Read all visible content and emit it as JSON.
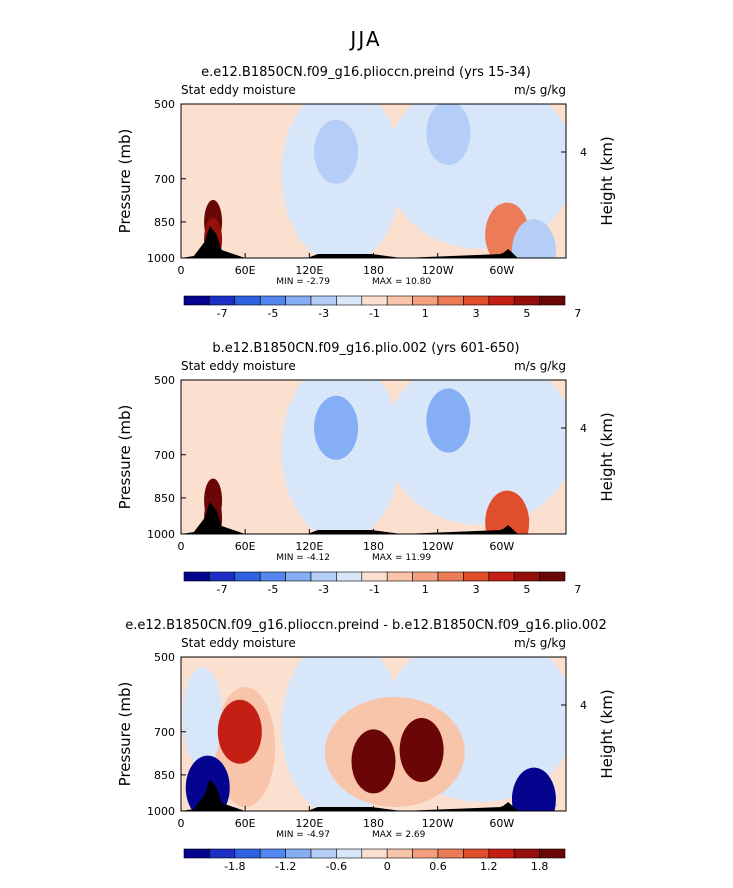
{
  "figure_title": "JJA",
  "panel_label_left": "Stat eddy moisture",
  "panel_label_right": "m/s g/kg",
  "left_axis_label": "Pressure (mb)",
  "right_axis_label": "Height (km)",
  "colors": {
    "palette": [
      "#04048e",
      "#1c2ec4",
      "#2e62e2",
      "#5486f0",
      "#86aef5",
      "#b4cef7",
      "#d8e6fa",
      "#fbe0d0",
      "#f8c4aa",
      "#f4a080",
      "#ec7b58",
      "#e04e2c",
      "#c41f14",
      "#960f0a",
      "#6a0606"
    ],
    "terrain": "#000000"
  },
  "chart_data": [
    {
      "type": "heatmap",
      "title": "e.e12.B1850CN.f09_g16.plioccn.preind (yrs 15-34)",
      "x_ticks": [
        "0",
        "60E",
        "120E",
        "180",
        "120W",
        "60W"
      ],
      "y_ticks": [
        "500",
        "700",
        "850",
        "1000"
      ],
      "right_ticks": [
        "4"
      ],
      "min_label": "MIN = -2.79",
      "max_label": "MAX = 10.80",
      "colorbar_ticks": [
        "-7",
        "-5",
        "-3",
        "-1",
        "1",
        "3",
        "5",
        "7"
      ],
      "min": -2.79,
      "max": 10.8,
      "features": [
        {
          "lon": 30,
          "p": 850,
          "value": 10.8
        },
        {
          "lon": 30,
          "p": 920,
          "value": 7
        },
        {
          "lon": 145,
          "p": 620,
          "value": -2.5
        },
        {
          "lon": 250,
          "p": 570,
          "value": -2.5
        },
        {
          "lon": 305,
          "p": 900,
          "value": 3
        },
        {
          "lon": 330,
          "p": 970,
          "value": -2
        }
      ]
    },
    {
      "type": "heatmap",
      "title": "b.e12.B1850CN.f09_g16.plio.002 (yrs 601-650)",
      "x_ticks": [
        "0",
        "60E",
        "120E",
        "180",
        "120W",
        "60W"
      ],
      "y_ticks": [
        "500",
        "700",
        "850",
        "1000"
      ],
      "right_ticks": [
        "4"
      ],
      "min_label": "MIN = -4.12",
      "max_label": "MAX = 11.99",
      "colorbar_ticks": [
        "-7",
        "-5",
        "-3",
        "-1",
        "1",
        "3",
        "5",
        "7"
      ],
      "min": -4.12,
      "max": 11.99,
      "features": [
        {
          "lon": 30,
          "p": 860,
          "value": 11.99
        },
        {
          "lon": 30,
          "p": 930,
          "value": 8
        },
        {
          "lon": 145,
          "p": 620,
          "value": -3
        },
        {
          "lon": 250,
          "p": 600,
          "value": -3
        },
        {
          "lon": 305,
          "p": 950,
          "value": 5
        }
      ]
    },
    {
      "type": "heatmap",
      "title": "e.e12.B1850CN.f09_g16.plioccn.preind - b.e12.B1850CN.f09_g16.plio.002",
      "x_ticks": [
        "0",
        "60E",
        "120E",
        "180",
        "120W",
        "60W"
      ],
      "y_ticks": [
        "500",
        "700",
        "850",
        "1000"
      ],
      "right_ticks": [
        "4"
      ],
      "min_label": "MIN = -4.97",
      "max_label": "MAX = 2.69",
      "colorbar_ticks": [
        "-1.8",
        "-1.2",
        "-0.6",
        "0",
        "0.6",
        "1.2",
        "1.8"
      ],
      "min": -4.97,
      "max": 2.69,
      "features": [
        {
          "lon": 25,
          "p": 900,
          "value": -4.97
        },
        {
          "lon": 330,
          "p": 950,
          "value": -4
        },
        {
          "lon": 180,
          "p": 800,
          "value": 2.69
        },
        {
          "lon": 225,
          "p": 760,
          "value": 2.2
        },
        {
          "lon": 55,
          "p": 700,
          "value": 1.5
        }
      ]
    }
  ]
}
